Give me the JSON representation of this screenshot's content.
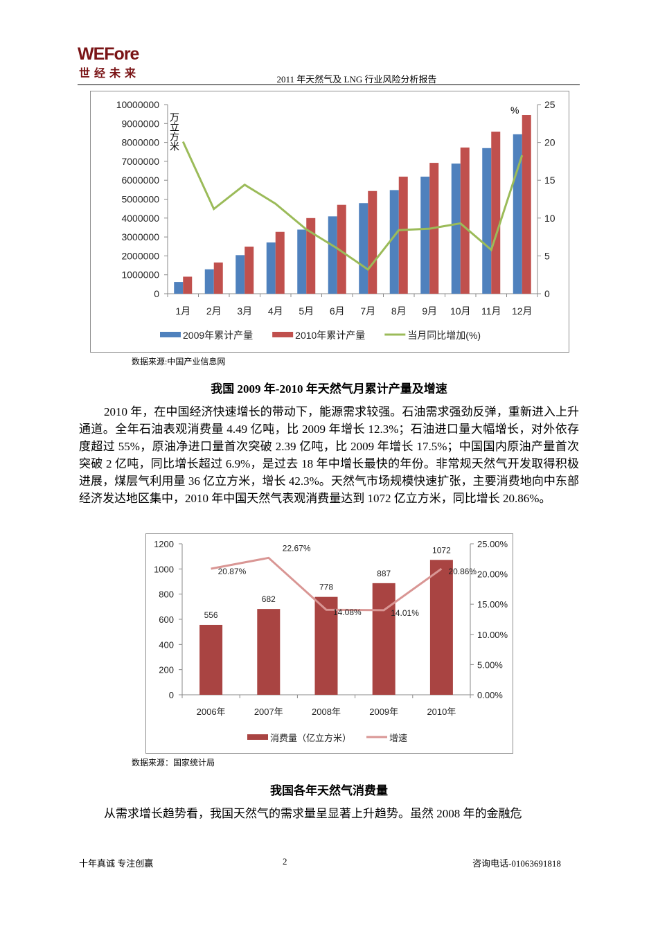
{
  "header": {
    "logo_text": "WEFore",
    "logo_subtext": "世经未来",
    "title": "2011 年天然气及 LNG 行业风险分析报告"
  },
  "colors": {
    "brand": "#7a1416",
    "series_2009": "#4f81bd",
    "series_2010": "#c0504d",
    "growth_line": "#9bbb59",
    "consumption_bar": "#a94442",
    "speed_line": "#d99694"
  },
  "chart_data": [
    {
      "type": "bar",
      "title": "",
      "categories": [
        "1月",
        "2月",
        "3月",
        "4月",
        "5月",
        "6月",
        "7月",
        "8月",
        "9月",
        "10月",
        "11月",
        "12月"
      ],
      "ylabel": "万立方米",
      "y2label": "%",
      "ylim": [
        0,
        10000000
      ],
      "y2lim": [
        0,
        25
      ],
      "yticks": [
        "0",
        "1000000",
        "2000000",
        "3000000",
        "4000000",
        "5000000",
        "6000000",
        "7000000",
        "8000000",
        "9000000",
        "10000000"
      ],
      "y2ticks": [
        "0",
        "5",
        "10",
        "15",
        "20",
        "25"
      ],
      "grid": false,
      "legend_position": "bottom",
      "series": [
        {
          "name": "2009年累计产量",
          "type": "bar",
          "axis": "left",
          "values": [
            620000,
            1290000,
            2040000,
            2710000,
            3390000,
            4090000,
            4790000,
            5480000,
            6190000,
            6880000,
            7700000,
            8430000
          ]
        },
        {
          "name": "2010年累计产量",
          "type": "bar",
          "axis": "left",
          "values": [
            900000,
            1650000,
            2490000,
            3270000,
            4000000,
            4700000,
            5430000,
            6190000,
            6920000,
            7730000,
            8570000,
            9450000
          ]
        },
        {
          "name": "当月同比增加(%)",
          "type": "line",
          "axis": "right",
          "values": [
            20.1,
            11.2,
            14.4,
            11.9,
            8.5,
            6.0,
            3.2,
            8.4,
            8.6,
            9.3,
            5.8,
            18.3
          ]
        }
      ]
    },
    {
      "type": "bar",
      "title": "",
      "categories": [
        "2006年",
        "2007年",
        "2008年",
        "2009年",
        "2010年"
      ],
      "ylim": [
        0,
        1200
      ],
      "y2lim": [
        0,
        25
      ],
      "yticks": [
        "0",
        "200",
        "400",
        "600",
        "800",
        "1000",
        "1200"
      ],
      "y2ticks": [
        "0.00%",
        "5.00%",
        "10.00%",
        "15.00%",
        "20.00%",
        "25.00%"
      ],
      "grid": false,
      "legend_position": "bottom",
      "series": [
        {
          "name": "消费量（亿立方米）",
          "type": "bar",
          "axis": "left",
          "values": [
            556,
            682,
            778,
            887,
            1072
          ],
          "labels": [
            "556",
            "682",
            "778",
            "887",
            "1072"
          ]
        },
        {
          "name": "增速",
          "type": "line",
          "axis": "right",
          "values": [
            20.87,
            22.67,
            14.08,
            14.01,
            20.86
          ],
          "labels": [
            "20.87%",
            "22.67%",
            "14.08%",
            "14.01%",
            "20.86%"
          ]
        }
      ]
    }
  ],
  "chart1": {
    "source": "数据来源:中国产业信息网",
    "caption": "我国 2009 年-2010 年天然气月累计产量及增速"
  },
  "paragraph1": "2010 年，在中国经济快速增长的带动下，能源需求较强。石油需求强劲反弹，重新进入上升通道。全年石油表观消费量 4.49 亿吨，比 2009 年增长 12.3%；石油进口量大幅增长，对外依存度超过 55%，原油净进口量首次突破 2.39 亿吨，比 2009 年增长 17.5%；中国国内原油产量首次突破 2 亿吨，同比增长超过 6.9%，是过去 18 年中增长最快的年份。非常规天然气开发取得积极进展，煤层气利用量 36 亿立方米，增长 42.3%。天然气市场规模快速扩张，主要消费地向中东部经济发达地区集中，2010 年中国天然气表观消费量达到 1072 亿立方米，同比增长 20.86%。",
  "chart2": {
    "source": "数据来源：国家统计局",
    "caption": "我国各年天然气消费量"
  },
  "paragraph2": "从需求增长趋势看，我国天然气的需求量呈显著上升趋势。虽然 2008 年的金融危",
  "footer": {
    "left": "十年真诚 专注创赢",
    "page": "2",
    "right": "咨询电话-01063691818"
  }
}
